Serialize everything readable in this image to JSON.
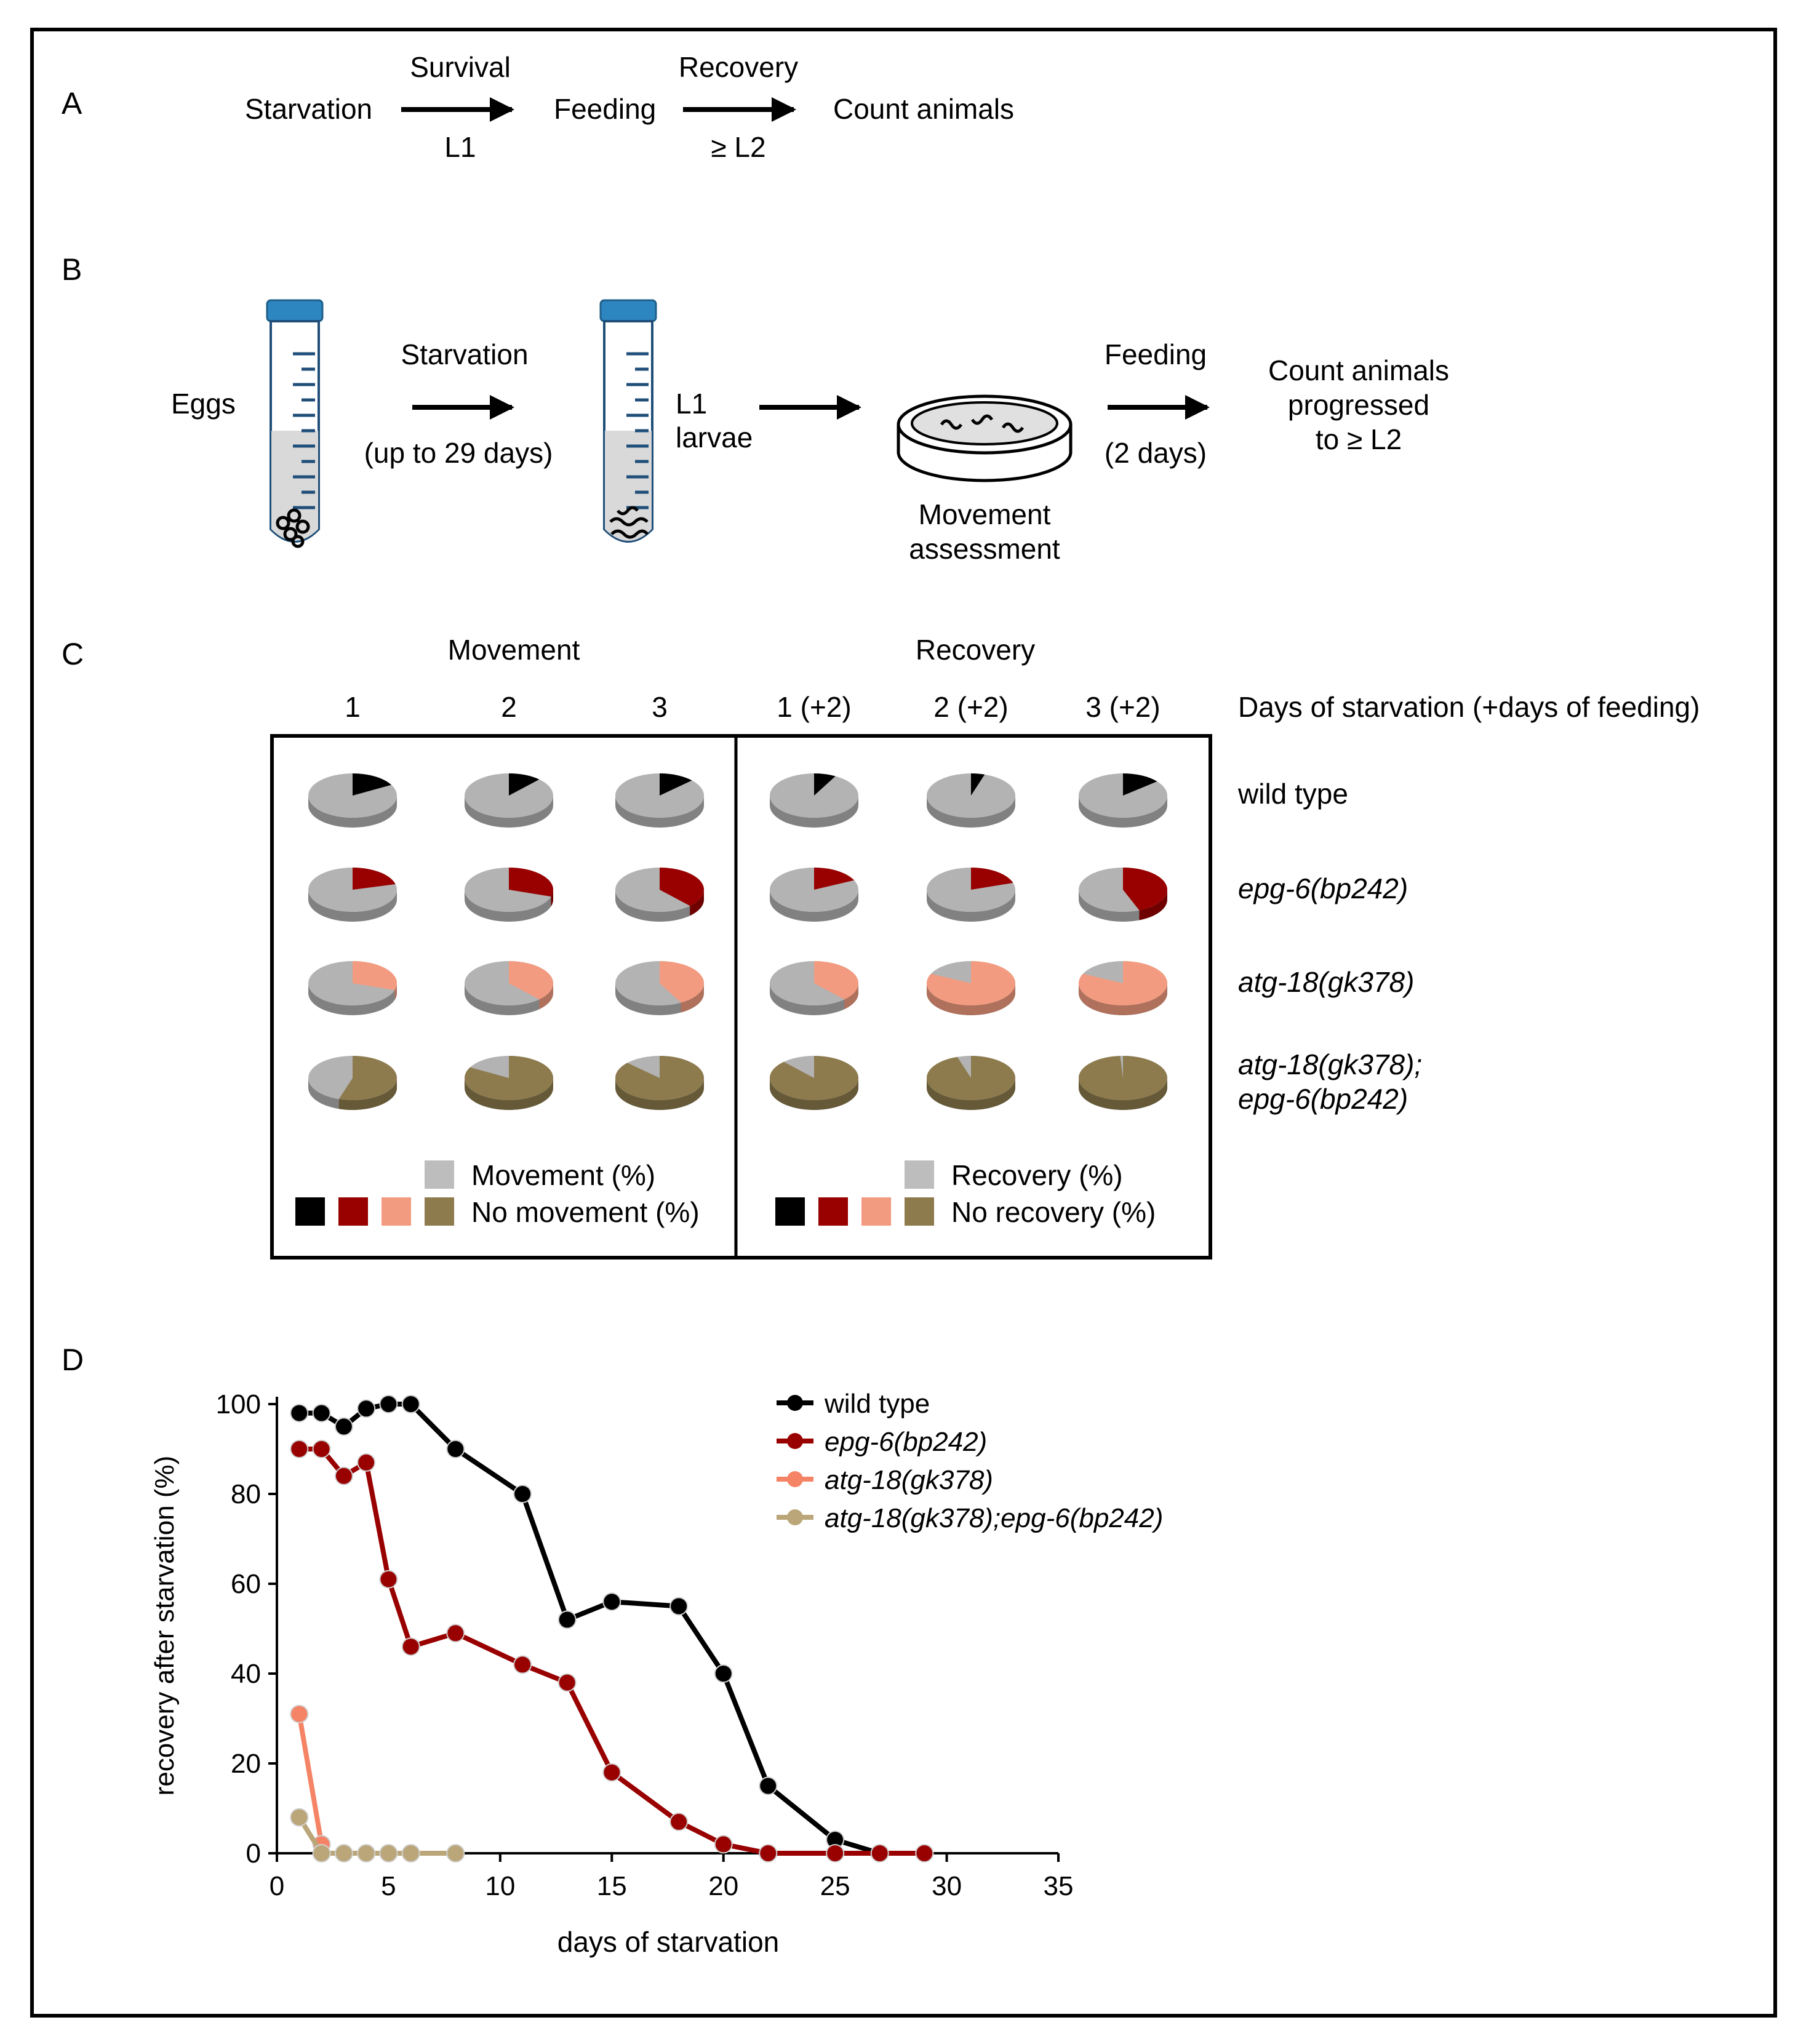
{
  "panel_labels": {
    "a": "A",
    "b": "B",
    "c": "C",
    "d": "D"
  },
  "panel_a": {
    "starvation": "Starvation",
    "survival": "Survival",
    "l1": "L1",
    "feeding": "Feeding",
    "recovery": "Recovery",
    "l2": "≥ L2",
    "count": "Count animals"
  },
  "panel_b": {
    "eggs": "Eggs",
    "starvation": "Starvation",
    "duration": "(up to 29 days)",
    "l1": "L1",
    "larvae": "larvae",
    "movement1": "Movement",
    "movement2": "assessment",
    "feeding": "Feeding",
    "feeding_duration": "(2 days)",
    "count1": "Count animals",
    "count2": "progressed",
    "count3": "to ≥ L2"
  },
  "panel_c": {
    "movement_header": "Movement",
    "recovery_header": "Recovery",
    "day_cols": [
      "1",
      "2",
      "3",
      "1 (+2)",
      "2 (+2)",
      "3 (+2)"
    ],
    "days_label": "Days of starvation (+days of feeding)",
    "rows": [
      "wild type",
      "epg-6(bp242)",
      "atg-18(gk378)",
      "atg-18(gk378);",
      "epg-6(bp242)"
    ],
    "legend": {
      "movement": "Movement (%)",
      "no_movement": "No movement (%)",
      "recovery": "Recovery (%)",
      "no_recovery": "No recovery (%)"
    },
    "colors": {
      "gray": "#b3b3b3",
      "black": "#000000",
      "red": "#990000",
      "salmon": "#f39b80",
      "olive": "#8d7b4e"
    },
    "pie_fractions": [
      [
        0.17,
        0.12,
        0.13,
        0.08,
        0.05,
        0.14
      ],
      [
        0.21,
        0.3,
        0.38,
        0.18,
        0.2,
        0.44
      ],
      [
        0.3,
        0.38,
        0.42,
        0.38,
        0.82,
        0.82
      ],
      [
        0.55,
        0.83,
        0.87,
        0.88,
        0.95,
        0.99
      ]
    ]
  },
  "chart_data": {
    "type": "line",
    "xlabel": "days of starvation",
    "ylabel": "recovery after starvation (%)",
    "xlim": [
      0,
      35
    ],
    "ylim": [
      0,
      100
    ],
    "xticks": [
      0,
      5,
      10,
      15,
      20,
      25,
      30,
      35
    ],
    "yticks": [
      0,
      20,
      40,
      60,
      80,
      100
    ],
    "legend_position": "top-right",
    "series": [
      {
        "name": "wild type",
        "italic": false,
        "color": "#000000",
        "x": [
          1,
          2,
          3,
          4,
          5,
          6,
          8,
          11,
          13,
          15,
          18,
          20,
          22,
          25,
          27,
          29
        ],
        "y": [
          98,
          98,
          95,
          99,
          100,
          100,
          90,
          80,
          52,
          56,
          55,
          40,
          15,
          3,
          0,
          0
        ]
      },
      {
        "name": "epg-6(bp242)",
        "italic": true,
        "color": "#990000",
        "x": [
          1,
          2,
          3,
          4,
          5,
          6,
          8,
          11,
          13,
          15,
          18,
          20,
          22,
          25,
          27,
          29
        ],
        "y": [
          90,
          90,
          84,
          87,
          61,
          46,
          49,
          42,
          38,
          18,
          7,
          2,
          0,
          0,
          0,
          0
        ]
      },
      {
        "name": "atg-18(gk378)",
        "italic": true,
        "color": "#f58466",
        "x": [
          1,
          2
        ],
        "y": [
          31,
          2
        ]
      },
      {
        "name": "atg-18(gk378);epg-6(bp242)",
        "italic": true,
        "color": "#baa678",
        "x": [
          1,
          2,
          3,
          4,
          5,
          6,
          8
        ],
        "y": [
          8,
          0,
          0,
          0,
          0,
          0,
          0
        ]
      }
    ]
  }
}
